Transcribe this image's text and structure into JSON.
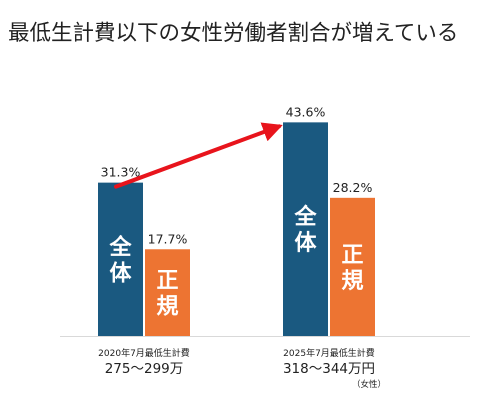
{
  "chart_data": {
    "type": "bar",
    "title": "最低生計費以下の女性労働者割合が増えている",
    "categories": [
      {
        "line1": "2020年7月最低生計費",
        "line2": "275〜299万",
        "note": ""
      },
      {
        "line1": "2025年7月最低生計費",
        "line2": "318〜344万円",
        "note": "（女性）"
      }
    ],
    "series": [
      {
        "name": "全体",
        "values": [
          31.3,
          43.6
        ],
        "labels": [
          "31.3%",
          "43.6%"
        ]
      },
      {
        "name": "正規",
        "values": [
          17.7,
          28.2
        ],
        "labels": [
          "17.7%",
          "28.2%"
        ]
      }
    ],
    "unit": "%",
    "ylim": [
      0,
      50
    ],
    "grid": false,
    "legend": "none",
    "annotation": "arrow from 2020 全体 bar top to 2025 全体 bar top",
    "colors": {
      "series_1": "#1a5980",
      "series_2": "#ed7432",
      "arrow": "#e8141c",
      "text": "#222222",
      "axis": "#d9d9d9"
    }
  }
}
